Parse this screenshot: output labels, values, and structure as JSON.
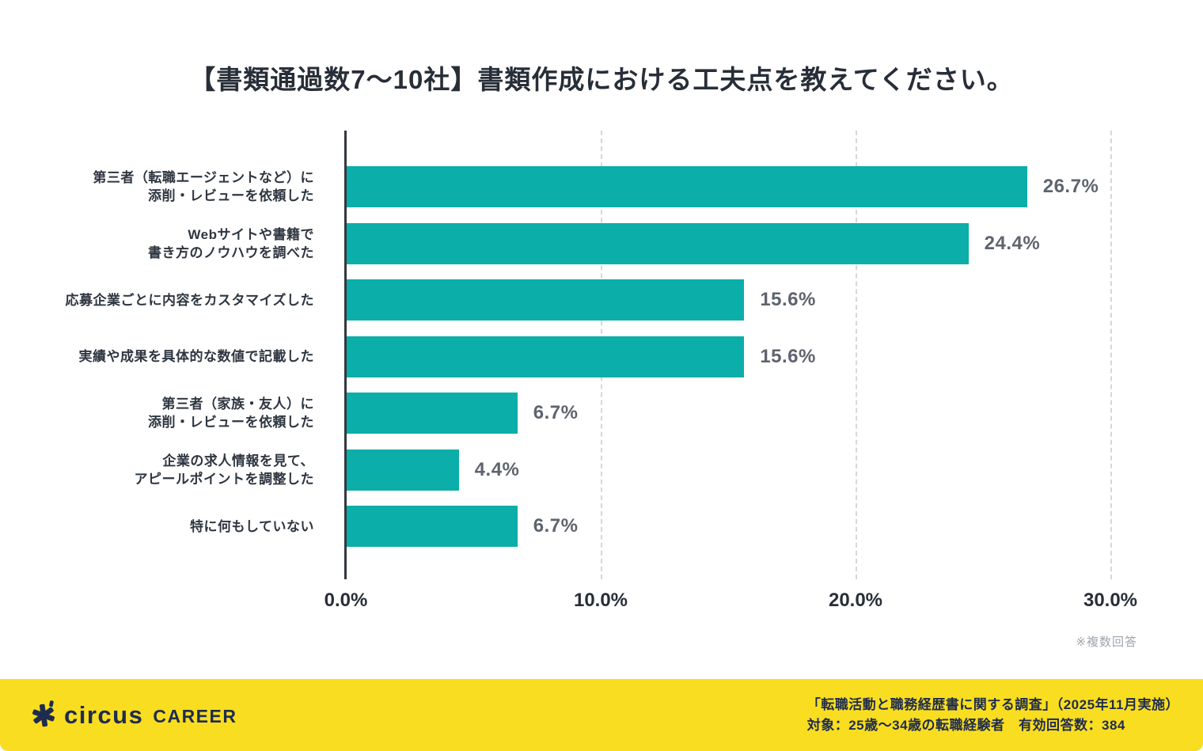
{
  "title": "【書類通過数7〜10社】書類作成における工夫点を教えてください。",
  "chart_data": {
    "type": "bar",
    "orientation": "horizontal",
    "title": "【書類通過数7〜10社】書類作成における工夫点を教えてください。",
    "categories": [
      "第三者（転職エージェントなど）に添削・レビューを依頼した",
      "Webサイトや書籍で書き方のノウハウを調べた",
      "応募企業ごとに内容をカスタマイズした",
      "実績や成果を具体的な数値で記載した",
      "第三者（家族・友人）に添削・レビューを依頼した",
      "企業の求人情報を見て、アピールポイントを調整した",
      "特に何もしていない"
    ],
    "rows": [
      {
        "label_lines": [
          "第三者（転職エージェントなど）に",
          "添削・レビューを依頼した"
        ],
        "value": 26.7,
        "value_label": "26.7%"
      },
      {
        "label_lines": [
          "Webサイトや書籍で",
          "書き方のノウハウを調べた"
        ],
        "value": 24.4,
        "value_label": "24.4%"
      },
      {
        "label_lines": [
          "応募企業ごとに内容をカスタマイズした"
        ],
        "value": 15.6,
        "value_label": "15.6%"
      },
      {
        "label_lines": [
          "実績や成果を具体的な数値で記載した"
        ],
        "value": 15.6,
        "value_label": "15.6%"
      },
      {
        "label_lines": [
          "第三者（家族・友人）に",
          "添削・レビューを依頼した"
        ],
        "value": 6.7,
        "value_label": "6.7%"
      },
      {
        "label_lines": [
          "企業の求人情報を見て、",
          "アピールポイントを調整した"
        ],
        "value": 4.4,
        "value_label": "4.4%"
      },
      {
        "label_lines": [
          "特に何もしていない"
        ],
        "value": 6.7,
        "value_label": "6.7%"
      }
    ],
    "x_ticks": [
      {
        "value": 0,
        "label": "0.0%"
      },
      {
        "value": 10,
        "label": "10.0%"
      },
      {
        "value": 20,
        "label": "20.0%"
      },
      {
        "value": 30,
        "label": "30.0%"
      }
    ],
    "xlim": [
      0,
      30
    ],
    "xlabel": "",
    "ylabel": "",
    "grid": "vertical-dashed",
    "legend": "none",
    "bar_color": "#0baea8"
  },
  "footnote": "※複数回答",
  "footer": {
    "brand": "circus",
    "brand_suffix": "CAREER",
    "survey_line1": "「転職活動と職務経歴書に関する調査」（2025年11月実施）",
    "survey_line2": "対象：25歳〜34歳の転職経験者　有効回答数：384"
  },
  "colors": {
    "bar": "#0baea8",
    "title_text": "#272e37",
    "category_text": "#2e3640",
    "value_text": "#5d646d",
    "gridline": "#d5d7d9",
    "axis": "#32383f",
    "footnote_text": "#9fa5ab",
    "footer_background": "#f9dd20",
    "footer_text": "#1e2c4e"
  }
}
